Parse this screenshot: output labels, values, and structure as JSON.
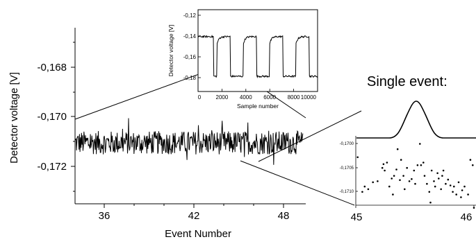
{
  "chart_data": [
    {
      "type": "line",
      "xlabel": "Event Number",
      "ylabel": "Detector voltage [V]",
      "xticks": [
        "36",
        "42",
        "48"
      ],
      "yticks": [
        "-0,168",
        "-0,170",
        "-0,172"
      ],
      "xlim": [
        33.5,
        49.5
      ],
      "ylim": [
        -0.1734,
        -0.1659
      ],
      "series": [
        {
          "x_range": [
            33.5,
            49.3
          ],
          "baseline": -0.1708,
          "noise_amplitude": 0.0005
        }
      ]
    },
    {
      "type": "line",
      "xlabel": "Sample number",
      "ylabel": "Detector voltage [V]",
      "xticks": [
        "0",
        "2000",
        "4000",
        "6000",
        "8000",
        "10000"
      ],
      "yticks": [
        "-0,12",
        "-0,14",
        "-0,16",
        "-0,18"
      ],
      "xlim": [
        0,
        10000
      ],
      "ylim": [
        -0.185,
        -0.115
      ],
      "series": [
        {
          "pulse_high": -0.138,
          "pulse_low": -0.172,
          "pulse_starts": [
            1600,
            3800,
            6000,
            8200
          ],
          "pulse_width": 1100
        }
      ]
    },
    {
      "type": "scatter",
      "title": "Single event:",
      "xticks": [
        "45",
        "46"
      ],
      "yticks": [
        "-0,1700",
        "-0,1705",
        "-0,1710"
      ],
      "xlim": [
        45,
        46
      ],
      "ylim": [
        -0.17115,
        -0.16985
      ],
      "series": [
        {
          "x": [
            45.01,
            45.05,
            45.07,
            45.1,
            45.14,
            45.18,
            45.22,
            45.23,
            45.24,
            45.26,
            45.28,
            45.3,
            45.31,
            45.32,
            45.34,
            45.35,
            45.37,
            45.38,
            45.4,
            45.41,
            45.43,
            45.45,
            45.47,
            45.49,
            45.5,
            45.52,
            45.54,
            45.55,
            45.57,
            45.58,
            45.6,
            45.62,
            45.63,
            45.64,
            45.66,
            45.67,
            45.69,
            45.7,
            45.72,
            45.73,
            45.74,
            45.76,
            45.78,
            45.8,
            45.82,
            45.83,
            45.85,
            45.87,
            45.89,
            45.9,
            45.92,
            45.95,
            45.97,
            45.99,
            46.0
          ],
          "y": [
            -0.17025,
            -0.1709,
            -0.1708,
            -0.17085,
            -0.17072,
            -0.1707,
            -0.17045,
            -0.17038,
            -0.1705,
            -0.17035,
            -0.1708,
            -0.17065,
            -0.17095,
            -0.1706,
            -0.17048,
            -0.1701,
            -0.17068,
            -0.1703,
            -0.1706,
            -0.17085,
            -0.17045,
            -0.1707,
            -0.17066,
            -0.1705,
            -0.17075,
            -0.1704,
            -0.17,
            -0.1704,
            -0.17035,
            -0.1706,
            -0.17075,
            -0.1709,
            -0.1711,
            -0.1705,
            -0.1707,
            -0.1708,
            -0.17055,
            -0.17065,
            -0.17085,
            -0.1706,
            -0.1705,
            -0.17075,
            -0.17067,
            -0.17078,
            -0.1709,
            -0.1708,
            -0.17095,
            -0.17072,
            -0.171,
            -0.17087,
            -0.1708,
            -0.17095,
            -0.1703,
            -0.1704,
            -0.1712
          ]
        }
      ]
    }
  ]
}
